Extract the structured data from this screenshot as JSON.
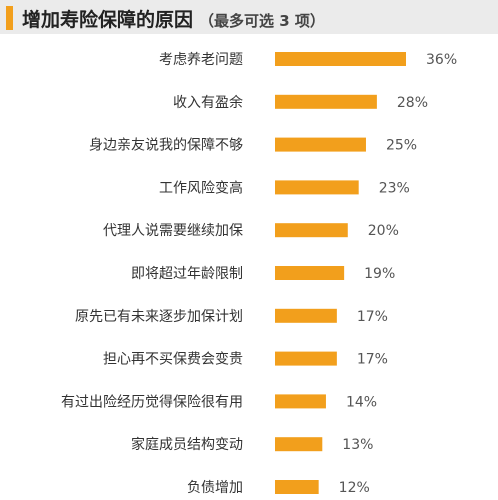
{
  "colors": {
    "bar": "#f29f1c",
    "accent": "#f29f1c",
    "header_bg": "#ebebeb",
    "label": "#333333",
    "value": "#555555"
  },
  "header": {
    "title": "增加寿险保障的原因",
    "subtitle": "（最多可选 3 项）"
  },
  "chart_data": {
    "type": "bar",
    "orientation": "horizontal",
    "title": "增加寿险保障的原因",
    "subtitle": "（最多可选 3 项）",
    "categories": [
      "考虑养老问题",
      "收入有盈余",
      "身边亲友说我的保障不够",
      "工作风险变高",
      "代理人说需要继续加保",
      "即将超过年龄限制",
      "原先已有未来逐步加保计划",
      "担心再不买保费会变贵",
      "有过出险经历觉得保险很有用",
      "家庭成员结构变动",
      "负债增加"
    ],
    "values": [
      36,
      28,
      25,
      23,
      20,
      19,
      17,
      17,
      14,
      13,
      12
    ],
    "value_labels": [
      "36%",
      "28%",
      "25%",
      "23%",
      "20%",
      "19%",
      "17%",
      "17%",
      "14%",
      "13%",
      "12%"
    ],
    "unit": "%",
    "grid": false,
    "legend": "none"
  }
}
